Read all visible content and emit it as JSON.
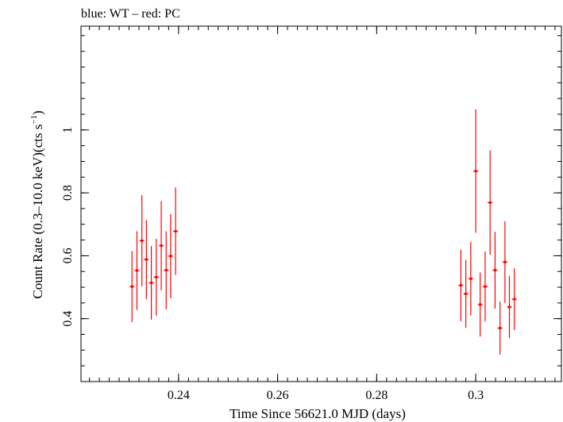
{
  "chart_data": {
    "type": "scatter",
    "title": "blue: WT – red: PC",
    "xlabel": "Time Since 56621.0 MJD (days)",
    "ylabel_main": "Count Rate (0.3–10.0 keV)(cts s",
    "ylabel_sup": "−1",
    "ylabel_tail": ")",
    "xlim": [
      0.2203,
      0.3173
    ],
    "ylim": [
      0.2,
      1.33
    ],
    "x_ticks": [
      0.24,
      0.26,
      0.28,
      0.3
    ],
    "x_tick_labels": [
      "0.24",
      "0.26",
      "0.28",
      "0.3"
    ],
    "y_ticks": [
      0.4,
      0.6,
      0.8,
      1.0
    ],
    "y_tick_labels": [
      "0.4",
      "0.6",
      "0.8",
      "1"
    ],
    "x_minor_step": 0.002,
    "y_minor_step": 0.05,
    "grid": false,
    "series": [
      {
        "color": "#ff0000",
        "points": [
          {
            "x": 0.2306,
            "xerr": 0.00049,
            "y": 0.502,
            "yerr": 0.113
          },
          {
            "x": 0.2316,
            "xerr": 0.00049,
            "y": 0.553,
            "yerr": 0.125
          },
          {
            "x": 0.2326,
            "xerr": 0.00049,
            "y": 0.648,
            "yerr": 0.145
          },
          {
            "x": 0.2335,
            "xerr": 0.00049,
            "y": 0.588,
            "yerr": 0.126
          },
          {
            "x": 0.2345,
            "xerr": 0.00049,
            "y": 0.514,
            "yerr": 0.117
          },
          {
            "x": 0.2355,
            "xerr": 0.00049,
            "y": 0.532,
            "yerr": 0.122
          },
          {
            "x": 0.2365,
            "xerr": 0.00049,
            "y": 0.632,
            "yerr": 0.142
          },
          {
            "x": 0.2375,
            "xerr": 0.00049,
            "y": 0.554,
            "yerr": 0.124
          },
          {
            "x": 0.2384,
            "xerr": 0.00049,
            "y": 0.599,
            "yerr": 0.134
          },
          {
            "x": 0.2394,
            "xerr": 0.00049,
            "y": 0.678,
            "yerr": 0.139
          },
          {
            "x": 0.297,
            "xerr": 0.00049,
            "y": 0.506,
            "yerr": 0.114
          },
          {
            "x": 0.298,
            "xerr": 0.00049,
            "y": 0.479,
            "yerr": 0.108
          },
          {
            "x": 0.299,
            "xerr": 0.00049,
            "y": 0.527,
            "yerr": 0.117
          },
          {
            "x": 0.3,
            "xerr": 0.00049,
            "y": 0.869,
            "yerr": 0.196
          },
          {
            "x": 0.3009,
            "xerr": 0.00049,
            "y": 0.445,
            "yerr": 0.102
          },
          {
            "x": 0.3019,
            "xerr": 0.00049,
            "y": 0.502,
            "yerr": 0.111
          },
          {
            "x": 0.3029,
            "xerr": 0.00049,
            "y": 0.769,
            "yerr": 0.166
          },
          {
            "x": 0.3039,
            "xerr": 0.00049,
            "y": 0.554,
            "yerr": 0.122
          },
          {
            "x": 0.3049,
            "xerr": 0.00049,
            "y": 0.37,
            "yerr": 0.084
          },
          {
            "x": 0.3059,
            "xerr": 0.00049,
            "y": 0.58,
            "yerr": 0.13
          },
          {
            "x": 0.3068,
            "xerr": 0.00049,
            "y": 0.437,
            "yerr": 0.099
          },
          {
            "x": 0.3078,
            "xerr": 0.00049,
            "y": 0.462,
            "yerr": 0.098
          }
        ]
      }
    ]
  }
}
